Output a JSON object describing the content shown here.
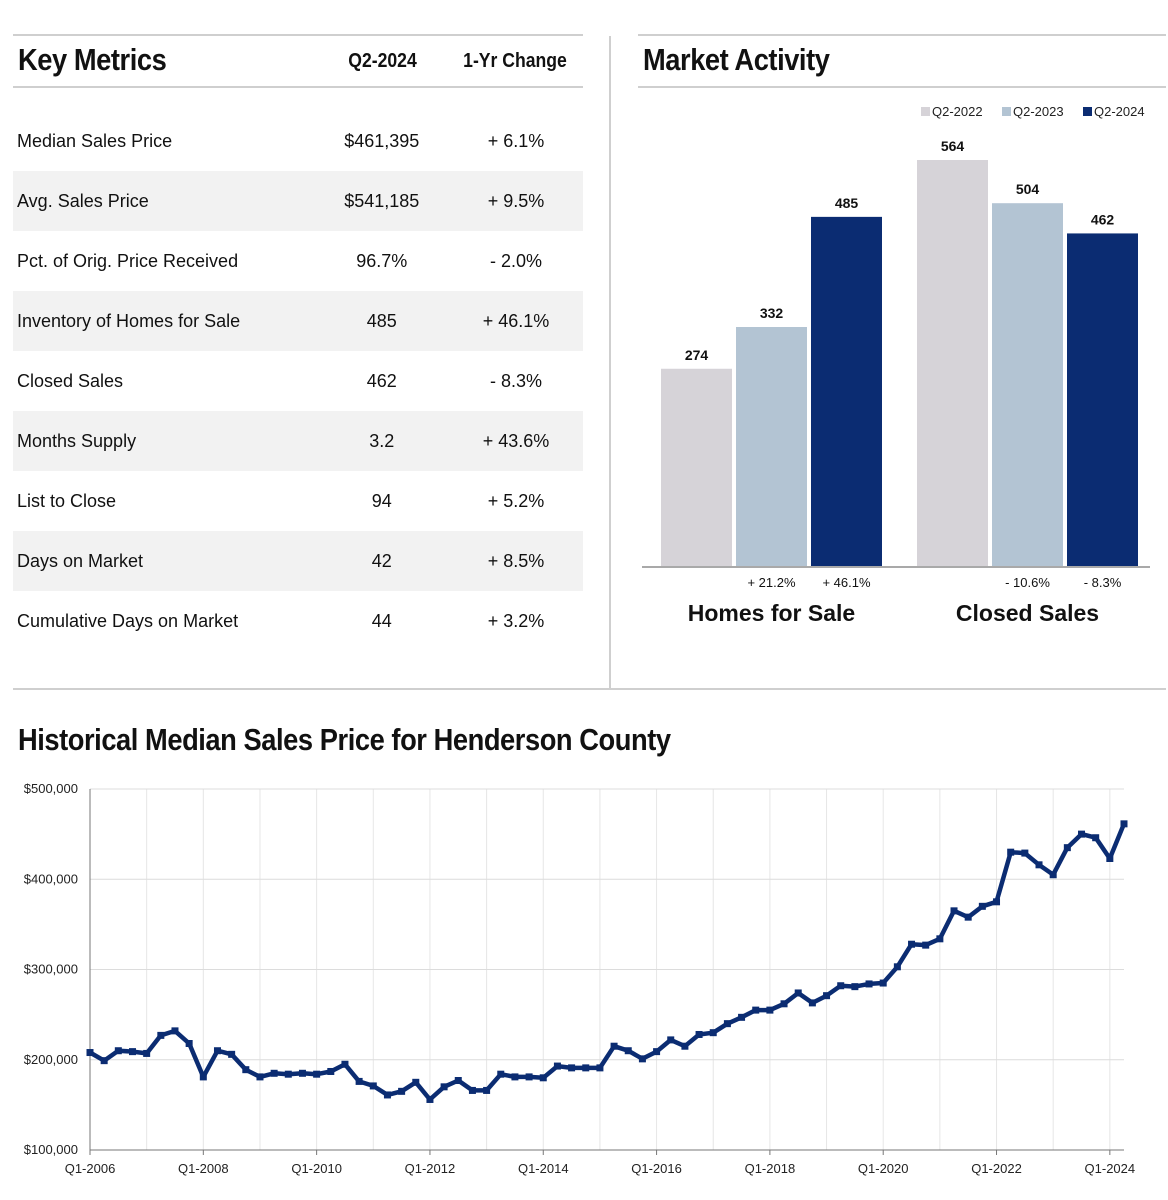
{
  "key_metrics": {
    "title": "Key Metrics",
    "col_period": "Q2-2024",
    "col_change": "1-Yr Change",
    "rows": [
      {
        "label": "Median Sales Price",
        "value": "$461,395",
        "change": "+ 6.1%"
      },
      {
        "label": "Avg. Sales Price",
        "value": "$541,185",
        "change": "+ 9.5%"
      },
      {
        "label": "Pct. of Orig. Price Received",
        "value": "96.7%",
        "change": "- 2.0%"
      },
      {
        "label": "Inventory of Homes for Sale",
        "value": "485",
        "change": "+ 46.1%"
      },
      {
        "label": "Closed Sales",
        "value": "462",
        "change": "- 8.3%"
      },
      {
        "label": "Months Supply",
        "value": "3.2",
        "change": "+ 43.6%"
      },
      {
        "label": "List to Close",
        "value": "94",
        "change": "+ 5.2%"
      },
      {
        "label": "Days on Market",
        "value": "42",
        "change": "+ 8.5%"
      },
      {
        "label": "Cumulative Days on Market",
        "value": "44",
        "change": "+ 3.2%"
      }
    ]
  },
  "market_activity": {
    "title": "Market Activity"
  },
  "historical": {
    "title": "Historical Median Sales Price for Henderson County"
  },
  "chart_data": [
    {
      "type": "bar",
      "title": "Market Activity",
      "categories": [
        "Homes for Sale",
        "Closed Sales"
      ],
      "series": [
        {
          "name": "Q2-2022",
          "color": "#d6d3d8",
          "values": [
            274,
            564
          ]
        },
        {
          "name": "Q2-2023",
          "color": "#b3c4d3",
          "values": [
            332,
            504
          ]
        },
        {
          "name": "Q2-2024",
          "color": "#0b2c72",
          "values": [
            485,
            462
          ]
        }
      ],
      "changes": [
        [
          "+ 21.2%",
          "+ 46.1%"
        ],
        [
          "- 10.6%",
          "- 8.3%"
        ]
      ],
      "ylim": [
        0,
        564
      ],
      "legend": "top-right"
    },
    {
      "type": "line",
      "title": "Historical Median Sales Price for Henderson County",
      "color": "#0b2c72",
      "x_start": "Q1-2006",
      "x_tick_labels": [
        "Q1-2006",
        "Q1-2008",
        "Q1-2010",
        "Q1-2012",
        "Q1-2014",
        "Q1-2016",
        "Q1-2018",
        "Q1-2020",
        "Q1-2022",
        "Q1-2024"
      ],
      "y_tick_labels": [
        "$100,000",
        "$200,000",
        "$300,000",
        "$400,000",
        "$500,000"
      ],
      "ylim": [
        100000,
        500000
      ],
      "values": [
        208000,
        199000,
        210000,
        209000,
        207000,
        227000,
        232000,
        218000,
        181000,
        210000,
        206000,
        189000,
        181000,
        185000,
        184000,
        185000,
        184000,
        187000,
        195000,
        176000,
        171000,
        161000,
        165000,
        175000,
        156000,
        170000,
        177000,
        166000,
        166000,
        184000,
        181000,
        181000,
        180000,
        193000,
        191000,
        191000,
        191000,
        215000,
        210000,
        201000,
        209000,
        222000,
        215000,
        228000,
        230000,
        240000,
        247000,
        255000,
        255000,
        262000,
        274000,
        263000,
        271000,
        282000,
        281000,
        284000,
        285000,
        303000,
        328000,
        327000,
        334000,
        365000,
        358000,
        370000,
        375000,
        430000,
        429000,
        416000,
        405000,
        435000,
        450000,
        446000,
        423000,
        461395
      ]
    }
  ]
}
